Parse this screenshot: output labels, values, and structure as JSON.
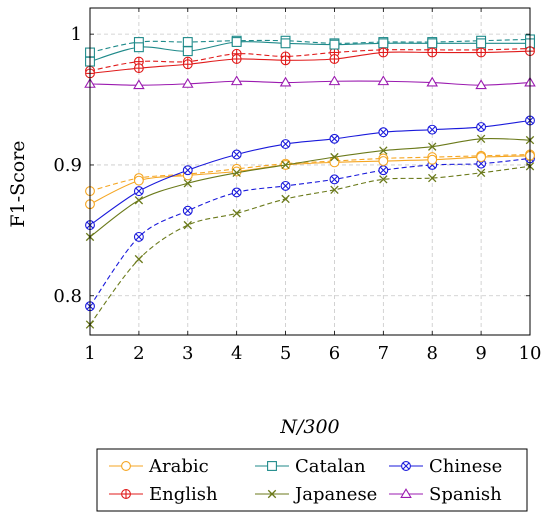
{
  "chart_data": {
    "type": "line",
    "title": "",
    "xlabel": "N/300",
    "ylabel": "F1-Score",
    "x": [
      1,
      2,
      3,
      4,
      5,
      6,
      7,
      8,
      9,
      10
    ],
    "xlim": [
      1,
      10
    ],
    "ylim": [
      0.77,
      1.02
    ],
    "x_ticks": [
      "1",
      "2",
      "3",
      "4",
      "5",
      "6",
      "7",
      "8",
      "9",
      "10"
    ],
    "y_ticks": [
      {
        "value": 0.8,
        "label": "0.8"
      },
      {
        "value": 0.9,
        "label": "0.9"
      },
      {
        "value": 1.0,
        "label": "1"
      }
    ],
    "grid": true,
    "legend_position": "bottom",
    "legend_columns": 3,
    "series": [
      {
        "name": "Arabic",
        "color": "#f5a623",
        "marker": "circle",
        "solid": [
          0.87,
          0.888,
          0.892,
          0.895,
          0.9,
          0.902,
          0.903,
          0.904,
          0.906,
          0.907
        ],
        "dashed": [
          0.88,
          0.89,
          0.893,
          0.897,
          0.901,
          0.903,
          0.905,
          0.906,
          0.907,
          0.908
        ]
      },
      {
        "name": "Catalan",
        "color": "#1f8a8a",
        "marker": "square",
        "solid": [
          0.979,
          0.99,
          0.987,
          0.994,
          0.993,
          0.992,
          0.993,
          0.993,
          0.993,
          0.993
        ],
        "dashed": [
          0.986,
          0.994,
          0.994,
          0.995,
          0.995,
          0.993,
          0.994,
          0.994,
          0.995,
          0.996
        ]
      },
      {
        "name": "Chinese",
        "color": "#1a1adb",
        "marker": "circle-x",
        "solid": [
          0.854,
          0.88,
          0.896,
          0.908,
          0.916,
          0.92,
          0.925,
          0.927,
          0.929,
          0.934
        ],
        "dashed": [
          0.792,
          0.845,
          0.865,
          0.879,
          0.884,
          0.889,
          0.896,
          0.9,
          0.901,
          0.905
        ]
      },
      {
        "name": "English",
        "color": "#e01b1b",
        "marker": "circle-plus",
        "solid": [
          0.97,
          0.974,
          0.977,
          0.981,
          0.98,
          0.981,
          0.986,
          0.986,
          0.986,
          0.987
        ],
        "dashed": [
          0.972,
          0.979,
          0.979,
          0.985,
          0.983,
          0.986,
          0.988,
          0.988,
          0.988,
          0.989
        ]
      },
      {
        "name": "Japanese",
        "color": "#6b7a1b",
        "marker": "x",
        "solid": [
          0.845,
          0.873,
          0.886,
          0.894,
          0.9,
          0.906,
          0.911,
          0.914,
          0.92,
          0.919
        ],
        "dashed": [
          0.778,
          0.828,
          0.854,
          0.863,
          0.874,
          0.881,
          0.889,
          0.89,
          0.894,
          0.899
        ]
      },
      {
        "name": "Spanish",
        "color": "#9b1bb0",
        "marker": "triangle",
        "solid": [
          0.962,
          0.961,
          0.962,
          0.964,
          0.963,
          0.964,
          0.964,
          0.963,
          0.961,
          0.963
        ],
        "dashed": []
      }
    ]
  }
}
